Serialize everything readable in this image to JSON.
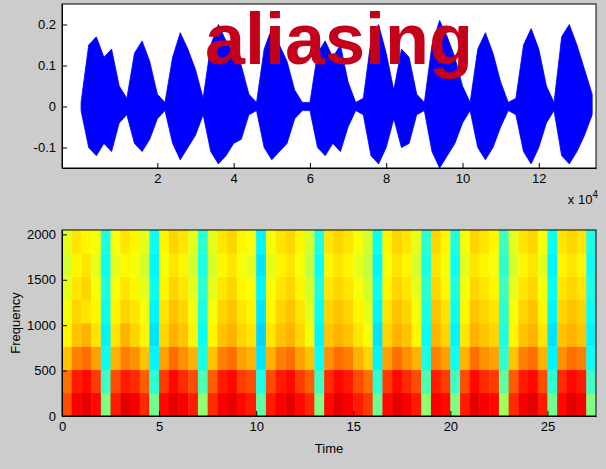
{
  "chart_data": [
    {
      "type": "area",
      "title": "aliasing",
      "x_scale_label": "x 10",
      "x_scale_exponent": "4",
      "grid": false,
      "xlim": [
        -0.5,
        13.5
      ],
      "ylim": [
        -0.15,
        0.25
      ],
      "xticks": [
        2,
        4,
        6,
        8,
        10,
        12
      ],
      "yticks": [
        -0.1,
        0,
        0.1,
        0.2
      ],
      "x": [
        0,
        0.2,
        0.4,
        0.6,
        0.8,
        1,
        1.2,
        1.4,
        1.6,
        1.8,
        2,
        2.2,
        2.4,
        2.6,
        2.8,
        3,
        3.2,
        3.4,
        3.6,
        3.8,
        4,
        4.2,
        4.4,
        4.6,
        4.8,
        5,
        5.2,
        5.4,
        5.6,
        5.8,
        6,
        6.2,
        6.4,
        6.6,
        6.8,
        7,
        7.2,
        7.4,
        7.6,
        7.8,
        8,
        8.2,
        8.4,
        8.6,
        8.8,
        9,
        9.2,
        9.4,
        9.6,
        9.8,
        10,
        10.2,
        10.4,
        10.6,
        10.8,
        11,
        11.2,
        11.4,
        11.6,
        11.8,
        12,
        12.2,
        12.4,
        12.6,
        12.8,
        13,
        13.2,
        13.4
      ],
      "series": [
        {
          "color": "#0000ff",
          "values": [
            0.01,
            0.15,
            0.17,
            0.12,
            0.14,
            0.05,
            0.02,
            0.13,
            0.16,
            0.11,
            0.03,
            0.01,
            0.12,
            0.18,
            0.14,
            0.09,
            0.02,
            0.15,
            0.2,
            0.16,
            0.13,
            0.1,
            0.03,
            0.01,
            0.14,
            0.19,
            0.15,
            0.11,
            0.04,
            0.01,
            0.01,
            0.13,
            0.16,
            0.12,
            0.15,
            0.06,
            0.01,
            0.02,
            0.16,
            0.2,
            0.13,
            0.04,
            0.14,
            0.12,
            0.03,
            0.01,
            0.15,
            0.21,
            0.17,
            0.12,
            0.05,
            0.01,
            0.14,
            0.18,
            0.13,
            0.06,
            0.01,
            0.02,
            0.15,
            0.19,
            0.14,
            0.05,
            0.01,
            0.17,
            0.2,
            0.15,
            0.09,
            0.03
          ]
        },
        {
          "color": "#0000ff",
          "values": [
            -0.01,
            -0.1,
            -0.12,
            -0.09,
            -0.11,
            -0.04,
            -0.02,
            -0.09,
            -0.11,
            -0.08,
            -0.03,
            -0.01,
            -0.09,
            -0.13,
            -0.1,
            -0.07,
            -0.02,
            -0.11,
            -0.14,
            -0.12,
            -0.09,
            -0.08,
            -0.02,
            -0.01,
            -0.1,
            -0.13,
            -0.11,
            -0.09,
            -0.03,
            -0.01,
            -0.01,
            -0.1,
            -0.12,
            -0.09,
            -0.11,
            -0.05,
            -0.01,
            -0.02,
            -0.12,
            -0.14,
            -0.1,
            -0.03,
            -0.1,
            -0.09,
            -0.02,
            -0.01,
            -0.11,
            -0.15,
            -0.12,
            -0.09,
            -0.04,
            -0.01,
            -0.1,
            -0.13,
            -0.1,
            -0.05,
            -0.01,
            -0.02,
            -0.11,
            -0.14,
            -0.1,
            -0.04,
            -0.01,
            -0.12,
            -0.14,
            -0.11,
            -0.07,
            -0.02
          ]
        }
      ]
    },
    {
      "type": "heatmap",
      "xlabel": "Time",
      "ylabel": "Frequency",
      "grid": false,
      "xlim": [
        0,
        27.5
      ],
      "ylim": [
        0,
        2048
      ],
      "xticks": [
        0,
        5,
        10,
        15,
        20,
        25
      ],
      "yticks": [
        0,
        500,
        1000,
        1500,
        2000
      ],
      "zlim": [
        -60,
        0
      ],
      "x_bins": [
        0,
        0.5,
        1,
        1.5,
        2,
        2.5,
        3,
        3.5,
        4,
        4.5,
        5,
        5.5,
        6,
        6.5,
        7,
        7.5,
        8,
        8.5,
        9,
        9.5,
        10,
        10.5,
        11,
        11.5,
        12,
        12.5,
        13,
        13.5,
        14,
        14.5,
        15,
        15.5,
        16,
        16.5,
        17,
        17.5,
        18,
        18.5,
        19,
        19.5,
        20,
        20.5,
        21,
        21.5,
        22,
        22.5,
        23,
        23.5,
        24,
        24.5,
        25,
        25.5,
        26,
        26.5,
        27,
        27.5
      ],
      "y_bins": [
        0,
        256,
        512,
        768,
        1024,
        1280,
        1536,
        1792,
        2048
      ],
      "cells": [
        [
          -12,
          -7,
          -6,
          -8,
          -30,
          -9,
          -6,
          -7,
          -10,
          -31,
          -8,
          -6,
          -7,
          -9,
          -29,
          -10,
          -7,
          -6,
          -8,
          -9,
          -32,
          -9,
          -7,
          -6,
          -8,
          -10,
          -30,
          -8,
          -6,
          -7,
          -9,
          -11,
          -31,
          -8,
          -6,
          -7,
          -9,
          -29,
          -7,
          -8,
          -30,
          -9,
          -6,
          -7,
          -8,
          -28,
          -10,
          -7,
          -6,
          -9,
          -31,
          -8,
          -6,
          -7,
          -30
        ],
        [
          -14,
          -9,
          -8,
          -11,
          -34,
          -12,
          -9,
          -10,
          -13,
          -35,
          -11,
          -8,
          -10,
          -12,
          -33,
          -13,
          -9,
          -8,
          -11,
          -12,
          -36,
          -12,
          -9,
          -8,
          -11,
          -13,
          -34,
          -10,
          -8,
          -9,
          -12,
          -14,
          -35,
          -11,
          -8,
          -10,
          -12,
          -33,
          -9,
          -11,
          -34,
          -12,
          -8,
          -10,
          -11,
          -32,
          -13,
          -9,
          -8,
          -12,
          -35,
          -10,
          -8,
          -9,
          -34
        ],
        [
          -19,
          -15,
          -14,
          -17,
          -37,
          -18,
          -15,
          -16,
          -19,
          -38,
          -17,
          -14,
          -16,
          -18,
          -36,
          -19,
          -15,
          -14,
          -17,
          -18,
          -39,
          -18,
          -15,
          -14,
          -17,
          -19,
          -37,
          -16,
          -14,
          -15,
          -18,
          -20,
          -38,
          -17,
          -14,
          -16,
          -18,
          -36,
          -15,
          -17,
          -37,
          -18,
          -14,
          -16,
          -17,
          -35,
          -19,
          -15,
          -14,
          -18,
          -38,
          -16,
          -14,
          -15,
          -37
        ],
        [
          -22,
          -19,
          -18,
          -21,
          -38,
          -21,
          -18,
          -20,
          -22,
          -39,
          -20,
          -18,
          -19,
          -22,
          -37,
          -22,
          -19,
          -18,
          -20,
          -21,
          -40,
          -21,
          -19,
          -18,
          -20,
          -23,
          -38,
          -19,
          -18,
          -19,
          -21,
          -23,
          -39,
          -20,
          -18,
          -19,
          -22,
          -37,
          -18,
          -20,
          -38,
          -21,
          -18,
          -19,
          -20,
          -36,
          -22,
          -19,
          -18,
          -21,
          -39,
          -19,
          -18,
          -19,
          -38
        ],
        [
          -23,
          -20,
          -21,
          -22,
          -37,
          -22,
          -20,
          -21,
          -23,
          -38,
          -21,
          -19,
          -20,
          -23,
          -36,
          -23,
          -20,
          -19,
          -21,
          -22,
          -39,
          -22,
          -20,
          -19,
          -21,
          -24,
          -37,
          -20,
          -19,
          -20,
          -22,
          -24,
          -38,
          -21,
          -19,
          -20,
          -23,
          -36,
          -19,
          -21,
          -37,
          -22,
          -19,
          -20,
          -21,
          -35,
          -23,
          -20,
          -19,
          -22,
          -38,
          -20,
          -19,
          -20,
          -37
        ],
        [
          -24,
          -21,
          -20,
          -23,
          -36,
          -23,
          -21,
          -22,
          -24,
          -37,
          -22,
          -20,
          -21,
          -24,
          -35,
          -24,
          -21,
          -20,
          -22,
          -23,
          -38,
          -23,
          -21,
          -20,
          -22,
          -25,
          -36,
          -21,
          -20,
          -21,
          -23,
          -25,
          -37,
          -22,
          -20,
          -21,
          -24,
          -35,
          -20,
          -22,
          -36,
          -23,
          -20,
          -21,
          -22,
          -34,
          -24,
          -21,
          -20,
          -23,
          -37,
          -21,
          -20,
          -21,
          -36
        ],
        [
          -25,
          -22,
          -21,
          -24,
          -37,
          -24,
          -22,
          -23,
          -25,
          -38,
          -23,
          -21,
          -22,
          -25,
          -36,
          -25,
          -22,
          -21,
          -23,
          -24,
          -39,
          -24,
          -22,
          -21,
          -23,
          -26,
          -37,
          -22,
          -21,
          -22,
          -24,
          -26,
          -38,
          -23,
          -21,
          -22,
          -25,
          -36,
          -21,
          -23,
          -37,
          -24,
          -21,
          -22,
          -23,
          -35,
          -25,
          -22,
          -21,
          -24,
          -38,
          -22,
          -21,
          -22,
          -37
        ],
        [
          -24,
          -21,
          -22,
          -23,
          -36,
          -23,
          -21,
          -22,
          -24,
          -37,
          -22,
          -20,
          -21,
          -24,
          -35,
          -24,
          -21,
          -20,
          -22,
          -23,
          -38,
          -23,
          -21,
          -20,
          -22,
          -25,
          -36,
          -21,
          -20,
          -21,
          -23,
          -25,
          -37,
          -22,
          -20,
          -21,
          -24,
          -35,
          -20,
          -22,
          -36,
          -23,
          -20,
          -21,
          -22,
          -34,
          -24,
          -21,
          -20,
          -23,
          -37,
          -21,
          -20,
          -21,
          -36
        ]
      ]
    }
  ]
}
